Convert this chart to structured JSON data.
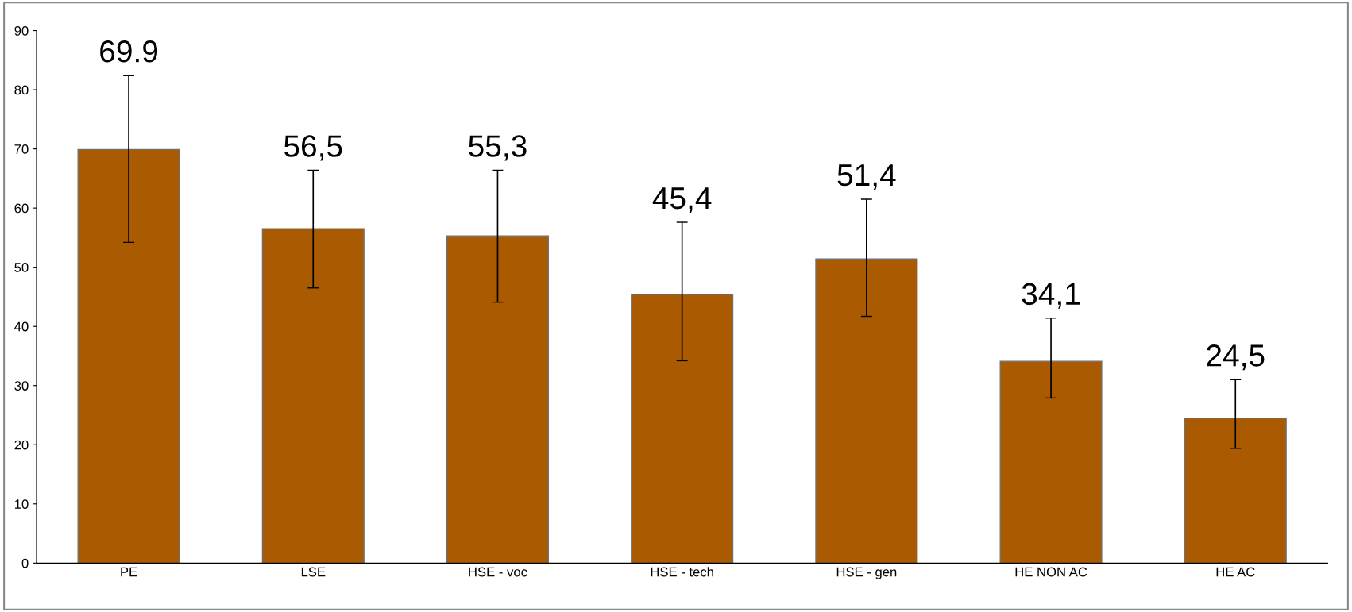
{
  "chart_data": {
    "type": "bar",
    "categories": [
      "PE",
      "LSE",
      "HSE - voc",
      "HSE - tech",
      "HSE - gen",
      "HE NON AC",
      "HE AC"
    ],
    "values": [
      69.9,
      56.5,
      55.3,
      45.4,
      51.4,
      34.1,
      24.5
    ],
    "value_labels": [
      "69.9",
      "56,5",
      "55,3",
      "45,4",
      "51,4",
      "34,1",
      "24,5"
    ],
    "errors": [
      [
        54.2,
        82.4
      ],
      [
        46.5,
        66.4
      ],
      [
        44.1,
        66.4
      ],
      [
        34.2,
        57.6
      ],
      [
        41.7,
        61.5
      ],
      [
        27.9,
        41.4
      ],
      [
        19.4,
        31.0
      ]
    ],
    "color": "#aa5a00",
    "ylim": [
      0,
      90
    ],
    "yticks": [
      0,
      10,
      20,
      30,
      40,
      50,
      60,
      70,
      80,
      90
    ],
    "grid": false
  }
}
